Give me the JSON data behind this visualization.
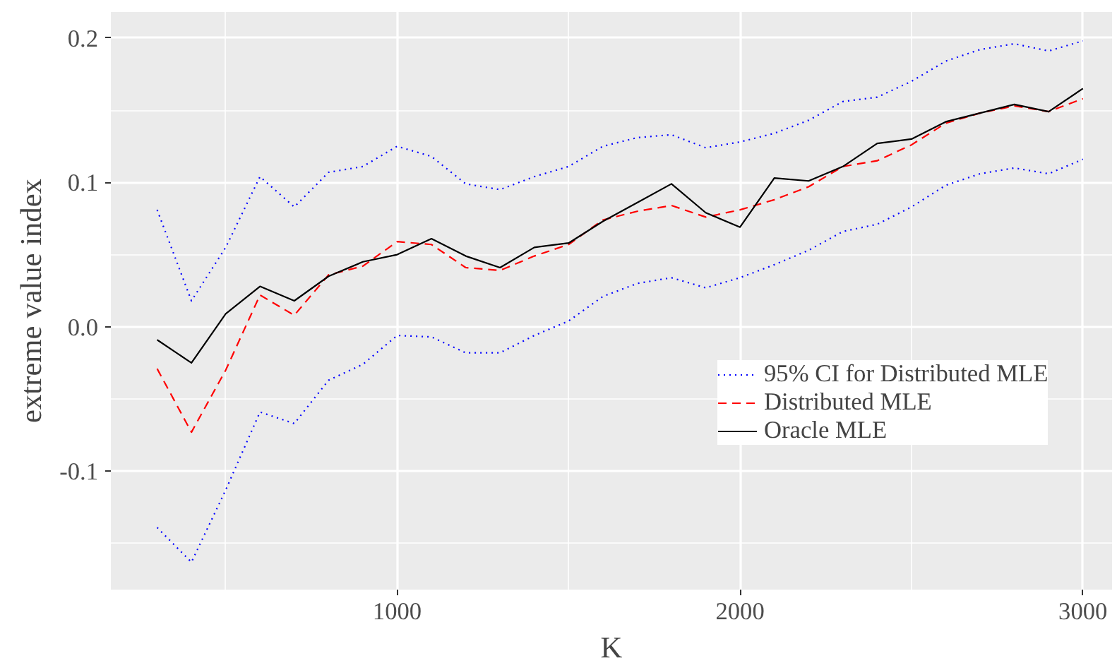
{
  "chart_data": {
    "type": "line",
    "xlabel": "K",
    "ylabel": "extreme value index",
    "x": [
      300,
      400,
      500,
      600,
      700,
      800,
      900,
      1000,
      1100,
      1200,
      1300,
      1400,
      1500,
      1600,
      1700,
      1800,
      1900,
      2000,
      2100,
      2200,
      2300,
      2400,
      2500,
      2600,
      2700,
      2800,
      2900,
      3000
    ],
    "series": [
      {
        "name": "95% CI for Distributed MLE",
        "color": "#0000ff",
        "line_style": "dotted",
        "values": [
          0.081,
          0.018,
          0.055,
          0.104,
          0.083,
          0.107,
          0.111,
          0.125,
          0.118,
          0.099,
          0.095,
          0.104,
          0.111,
          0.125,
          0.131,
          0.133,
          0.124,
          0.128,
          0.134,
          0.143,
          0.156,
          0.159,
          0.17,
          0.184,
          0.192,
          0.196,
          0.191,
          0.198
        ]
      },
      {
        "color": "#0000ff",
        "line_style": "dotted",
        "values": [
          -0.139,
          -0.163,
          -0.113,
          -0.059,
          -0.067,
          -0.037,
          -0.026,
          -0.006,
          -0.007,
          -0.018,
          -0.018,
          -0.006,
          0.004,
          0.021,
          0.03,
          0.034,
          0.027,
          0.034,
          0.043,
          0.053,
          0.066,
          0.071,
          0.083,
          0.098,
          0.106,
          0.11,
          0.106,
          0.116
        ]
      },
      {
        "name": "Distributed MLE",
        "color": "#ff0000",
        "line_style": "dashed",
        "values": [
          -0.029,
          -0.073,
          -0.03,
          0.022,
          0.008,
          0.036,
          0.042,
          0.059,
          0.057,
          0.041,
          0.039,
          0.049,
          0.057,
          0.074,
          0.08,
          0.084,
          0.076,
          0.081,
          0.088,
          0.097,
          0.111,
          0.115,
          0.126,
          0.141,
          0.148,
          0.153,
          0.149,
          0.158
        ]
      },
      {
        "name": "Oracle MLE",
        "color": "#000000",
        "line_style": "solid",
        "values": [
          -0.009,
          -0.025,
          0.009,
          0.028,
          0.018,
          0.035,
          0.045,
          0.05,
          0.061,
          0.049,
          0.041,
          0.055,
          0.058,
          0.073,
          0.086,
          0.099,
          0.079,
          0.069,
          0.103,
          0.101,
          0.111,
          0.127,
          0.13,
          0.142,
          0.148,
          0.154,
          0.149,
          0.165
        ]
      }
    ],
    "xlim": [
      165,
      3085
    ],
    "ylim": [
      -0.182,
      0.218
    ],
    "xticks": [
      {
        "value": 500,
        "label": null
      },
      1000,
      {
        "value": 1500,
        "label": null
      },
      2000,
      {
        "value": 2500,
        "label": null
      },
      3000
    ],
    "yticks": [
      {
        "value": -0.15,
        "label": null
      },
      {
        "value": -0.1,
        "label": "-0.1"
      },
      {
        "value": -0.05,
        "label": null
      },
      {
        "value": 0,
        "label": "0.0"
      },
      {
        "value": 0.05,
        "label": null
      },
      {
        "value": 0.1,
        "label": "0.1"
      },
      {
        "value": 0.15,
        "label": null
      },
      {
        "value": 0.2,
        "label": "0.2"
      }
    ],
    "grid": true,
    "legend": "right",
    "marker": "none"
  }
}
